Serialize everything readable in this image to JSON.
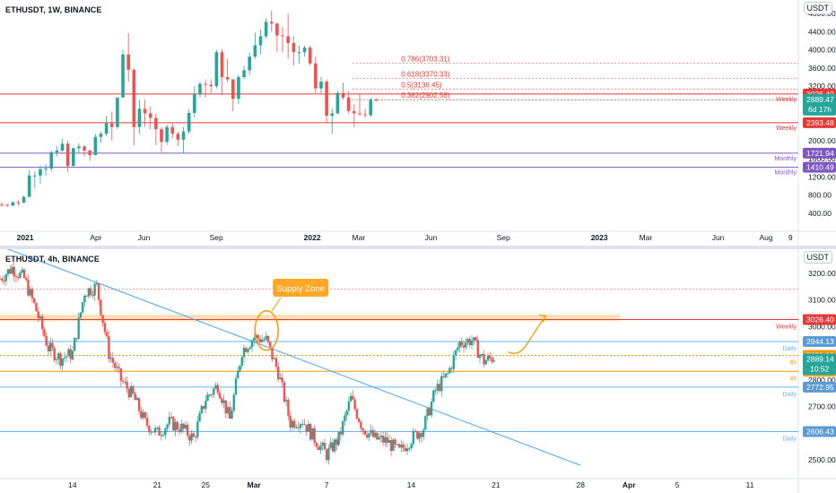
{
  "chart_data": [
    {
      "type": "candlestick",
      "title": "ETHUSDT, 1W, BINANCE",
      "currency": "USDT",
      "y_ticks": [
        400,
        800,
        1200,
        1600,
        2000,
        2400,
        2800,
        3200,
        3600,
        4000,
        4400,
        4800
      ],
      "y_tick_labels": [
        "400.00",
        "800.00",
        "1200.00",
        "1600.00",
        "2000.00",
        "2400.00",
        "2800.00",
        "3200.00",
        "3600.00",
        "4000.00",
        "4400.00",
        "4800.00"
      ],
      "y_range": [
        0,
        5100
      ],
      "x_range": [
        "2020-11-30",
        "2023-09-11"
      ],
      "x_ticks": [
        {
          "date": "2021-01-01",
          "label": "2021",
          "bold": true
        },
        {
          "date": "2021-04-01",
          "label": "Apr",
          "bold": false
        },
        {
          "date": "2021-06-01",
          "label": "Jun",
          "bold": false
        },
        {
          "date": "2021-09-01",
          "label": "Sep",
          "bold": false
        },
        {
          "date": "2022-01-01",
          "label": "2022",
          "bold": true
        },
        {
          "date": "2022-03-01",
          "label": "Mar",
          "bold": false
        },
        {
          "date": "2022-06-01",
          "label": "Jun",
          "bold": false
        },
        {
          "date": "2022-09-01",
          "label": "Sep",
          "bold": false
        },
        {
          "date": "2023-01-01",
          "label": "2023",
          "bold": true
        },
        {
          "date": "2023-03-01",
          "label": "Mar",
          "bold": false
        },
        {
          "date": "2023-06-01",
          "label": "Jun",
          "bold": false
        },
        {
          "date": "2023-08-01",
          "label": "Aug",
          "bold": false
        },
        {
          "date": "2023-09-01",
          "label": "9",
          "bold": false
        }
      ],
      "ohlc": [
        {
          "t": "2020-11-30",
          "o": 590,
          "h": 640,
          "l": 540,
          "c": 585
        },
        {
          "t": "2020-12-07",
          "o": 585,
          "h": 600,
          "l": 530,
          "c": 565
        },
        {
          "t": "2020-12-14",
          "o": 565,
          "h": 660,
          "l": 560,
          "c": 640
        },
        {
          "t": "2020-12-21",
          "o": 640,
          "h": 690,
          "l": 560,
          "c": 630
        },
        {
          "t": "2020-12-28",
          "o": 630,
          "h": 780,
          "l": 620,
          "c": 760
        },
        {
          "t": "2021-01-04",
          "o": 760,
          "h": 1350,
          "l": 750,
          "c": 1230
        },
        {
          "t": "2021-01-11",
          "o": 1230,
          "h": 1320,
          "l": 950,
          "c": 1230
        },
        {
          "t": "2021-01-18",
          "o": 1230,
          "h": 1450,
          "l": 1050,
          "c": 1370
        },
        {
          "t": "2021-01-25",
          "o": 1370,
          "h": 1480,
          "l": 1230,
          "c": 1380
        },
        {
          "t": "2021-02-01",
          "o": 1380,
          "h": 1780,
          "l": 1320,
          "c": 1740
        },
        {
          "t": "2021-02-08",
          "o": 1740,
          "h": 1880,
          "l": 1650,
          "c": 1780
        },
        {
          "t": "2021-02-15",
          "o": 1780,
          "h": 2040,
          "l": 1760,
          "c": 1930
        },
        {
          "t": "2021-02-22",
          "o": 1930,
          "h": 2000,
          "l": 1300,
          "c": 1440
        },
        {
          "t": "2021-03-01",
          "o": 1440,
          "h": 1850,
          "l": 1430,
          "c": 1830
        },
        {
          "t": "2021-03-08",
          "o": 1830,
          "h": 1940,
          "l": 1720,
          "c": 1870
        },
        {
          "t": "2021-03-15",
          "o": 1870,
          "h": 1900,
          "l": 1650,
          "c": 1780
        },
        {
          "t": "2021-03-22",
          "o": 1780,
          "h": 1800,
          "l": 1550,
          "c": 1680
        },
        {
          "t": "2021-03-29",
          "o": 1680,
          "h": 2150,
          "l": 1670,
          "c": 2080
        },
        {
          "t": "2021-04-05",
          "o": 2080,
          "h": 2200,
          "l": 1950,
          "c": 2150
        },
        {
          "t": "2021-04-12",
          "o": 2150,
          "h": 2550,
          "l": 2100,
          "c": 2380
        },
        {
          "t": "2021-04-19",
          "o": 2380,
          "h": 2640,
          "l": 2000,
          "c": 2300
        },
        {
          "t": "2021-04-26",
          "o": 2300,
          "h": 2950,
          "l": 2250,
          "c": 2950
        },
        {
          "t": "2021-05-03",
          "o": 2950,
          "h": 4000,
          "l": 2950,
          "c": 3900
        },
        {
          "t": "2021-05-10",
          "o": 3900,
          "h": 4370,
          "l": 3300,
          "c": 3560
        },
        {
          "t": "2021-05-17",
          "o": 3560,
          "h": 3600,
          "l": 1900,
          "c": 2300
        },
        {
          "t": "2021-05-24",
          "o": 2300,
          "h": 2900,
          "l": 2150,
          "c": 2700
        },
        {
          "t": "2021-05-31",
          "o": 2700,
          "h": 2900,
          "l": 2300,
          "c": 2600
        },
        {
          "t": "2021-06-07",
          "o": 2600,
          "h": 2750,
          "l": 2250,
          "c": 2500
        },
        {
          "t": "2021-06-14",
          "o": 2500,
          "h": 2600,
          "l": 1900,
          "c": 2250
        },
        {
          "t": "2021-06-21",
          "o": 2250,
          "h": 2300,
          "l": 1750,
          "c": 1970
        },
        {
          "t": "2021-06-28",
          "o": 1970,
          "h": 2350,
          "l": 1900,
          "c": 2300
        },
        {
          "t": "2021-07-05",
          "o": 2300,
          "h": 2400,
          "l": 2050,
          "c": 2150
        },
        {
          "t": "2021-07-12",
          "o": 2150,
          "h": 2200,
          "l": 1880,
          "c": 2020
        },
        {
          "t": "2021-07-19",
          "o": 2020,
          "h": 2300,
          "l": 1720,
          "c": 2200
        },
        {
          "t": "2021-07-26",
          "o": 2200,
          "h": 2700,
          "l": 2150,
          "c": 2610
        },
        {
          "t": "2021-08-02",
          "o": 2610,
          "h": 3200,
          "l": 2500,
          "c": 3020
        },
        {
          "t": "2021-08-09",
          "o": 3020,
          "h": 3300,
          "l": 2950,
          "c": 3250
        },
        {
          "t": "2021-08-16",
          "o": 3250,
          "h": 3350,
          "l": 2950,
          "c": 3230
        },
        {
          "t": "2021-08-23",
          "o": 3230,
          "h": 3350,
          "l": 3050,
          "c": 3200
        },
        {
          "t": "2021-08-30",
          "o": 3200,
          "h": 4000,
          "l": 3150,
          "c": 3950
        },
        {
          "t": "2021-09-06",
          "o": 3950,
          "h": 4020,
          "l": 3000,
          "c": 3400
        },
        {
          "t": "2021-09-13",
          "o": 3400,
          "h": 3800,
          "l": 3300,
          "c": 3350
        },
        {
          "t": "2021-09-20",
          "o": 3350,
          "h": 3350,
          "l": 2650,
          "c": 2920
        },
        {
          "t": "2021-09-27",
          "o": 2920,
          "h": 3450,
          "l": 2800,
          "c": 3400
        },
        {
          "t": "2021-10-04",
          "o": 3400,
          "h": 3650,
          "l": 3350,
          "c": 3550
        },
        {
          "t": "2021-10-11",
          "o": 3550,
          "h": 3950,
          "l": 3450,
          "c": 3850
        },
        {
          "t": "2021-10-18",
          "o": 3850,
          "h": 4380,
          "l": 3800,
          "c": 4100
        },
        {
          "t": "2021-10-25",
          "o": 4100,
          "h": 4450,
          "l": 3900,
          "c": 4300
        },
        {
          "t": "2021-11-01",
          "o": 4300,
          "h": 4700,
          "l": 4250,
          "c": 4620
        },
        {
          "t": "2021-11-08",
          "o": 4620,
          "h": 4870,
          "l": 4400,
          "c": 4580
        },
        {
          "t": "2021-11-15",
          "o": 4580,
          "h": 4600,
          "l": 3950,
          "c": 4320
        },
        {
          "t": "2021-11-22",
          "o": 4320,
          "h": 4500,
          "l": 3950,
          "c": 4300
        },
        {
          "t": "2021-11-29",
          "o": 4300,
          "h": 4800,
          "l": 3800,
          "c": 4150
        },
        {
          "t": "2021-12-06",
          "o": 4150,
          "h": 4300,
          "l": 3650,
          "c": 3950
        },
        {
          "t": "2021-12-13",
          "o": 3950,
          "h": 4100,
          "l": 3700,
          "c": 3950
        },
        {
          "t": "2021-12-20",
          "o": 3950,
          "h": 4100,
          "l": 3850,
          "c": 4050
        },
        {
          "t": "2021-12-27",
          "o": 4050,
          "h": 4100,
          "l": 3650,
          "c": 3700
        },
        {
          "t": "2022-01-03",
          "o": 3700,
          "h": 3850,
          "l": 3050,
          "c": 3150
        },
        {
          "t": "2022-01-10",
          "o": 3150,
          "h": 3400,
          "l": 3050,
          "c": 3300
        },
        {
          "t": "2022-01-17",
          "o": 3300,
          "h": 3350,
          "l": 2400,
          "c": 2550
        },
        {
          "t": "2022-01-24",
          "o": 2550,
          "h": 2700,
          "l": 2150,
          "c": 2600
        },
        {
          "t": "2022-01-31",
          "o": 2600,
          "h": 3100,
          "l": 2580,
          "c": 3050
        },
        {
          "t": "2022-02-07",
          "o": 3050,
          "h": 3280,
          "l": 2900,
          "c": 2950
        },
        {
          "t": "2022-02-14",
          "o": 2950,
          "h": 3100,
          "l": 2600,
          "c": 2650
        },
        {
          "t": "2022-02-21",
          "o": 2650,
          "h": 2800,
          "l": 2300,
          "c": 2600
        },
        {
          "t": "2022-02-28",
          "o": 2600,
          "h": 3050,
          "l": 2550,
          "c": 2580
        },
        {
          "t": "2022-03-07",
          "o": 2580,
          "h": 2700,
          "l": 2500,
          "c": 2560
        },
        {
          "t": "2022-03-14",
          "o": 2560,
          "h": 2950,
          "l": 2520,
          "c": 2900
        },
        {
          "t": "2022-03-21",
          "o": 2900,
          "h": 2920,
          "l": 2860,
          "c": 2889
        }
      ],
      "levels": [
        {
          "name": "fib-786",
          "label": "0.786(3703.31)",
          "value": 3703.31,
          "color": "#e57373",
          "style": "dotted",
          "side_label": "",
          "badge": ""
        },
        {
          "name": "fib-618",
          "label": "0.618(3370.33)",
          "value": 3370.33,
          "color": "#e57373",
          "style": "dotted",
          "side_label": "",
          "badge": ""
        },
        {
          "name": "fib-5",
          "label": "0.5(3136.45)",
          "value": 3136.45,
          "color": "#e57373",
          "style": "dotted",
          "side_label": "",
          "badge": ""
        },
        {
          "name": "fib-382",
          "label": "0.382(2902.58)",
          "value": 2902.58,
          "color": "#e57373",
          "style": "dotted",
          "side_label": "",
          "badge": ""
        },
        {
          "name": "weekly-resistance",
          "label": "",
          "value": 3026.4,
          "color": "#e53935",
          "style": "solid",
          "side_label": "Weekly",
          "badge": "3026.40"
        },
        {
          "name": "weekly-support",
          "label": "",
          "value": 2393.48,
          "color": "#e53935",
          "style": "solid",
          "side_label": "Weekly",
          "badge": "2393.48"
        },
        {
          "name": "monthly-1",
          "label": "",
          "value": 1721.94,
          "color": "#7e57c2",
          "style": "solid",
          "side_label": "Monthly",
          "badge": "1721.94"
        },
        {
          "name": "monthly-2",
          "label": "",
          "value": 1410.49,
          "color": "#7e57c2",
          "style": "solid",
          "side_label": "Monthly",
          "badge": "1410.49"
        }
      ],
      "last_price": {
        "value": "2889.47",
        "countdown": "6d 17h",
        "color": "#26a69a"
      },
      "grid": false
    },
    {
      "type": "candlestick",
      "title": "ETHUSDT, 4h, BINANCE",
      "currency": "USDT",
      "y_ticks": [
        2500,
        2600,
        2700,
        2800,
        2900,
        3000,
        3100,
        3200
      ],
      "y_tick_labels": [
        "2500.00",
        "2600.00",
        "2700.00",
        "2800.00",
        "2900.00",
        "3000.00",
        "3100.00",
        "3200.00"
      ],
      "y_range": [
        2430,
        3290
      ],
      "x_range": [
        "2022-02-08",
        "2022-04-15"
      ],
      "x_ticks": [
        {
          "date": "2022-02-14",
          "label": "14",
          "bold": false
        },
        {
          "date": "2022-02-21",
          "label": "21",
          "bold": false
        },
        {
          "date": "2022-02-25",
          "label": "25",
          "bold": false
        },
        {
          "date": "2022-03-01",
          "label": "Mar",
          "bold": true
        },
        {
          "date": "2022-03-07",
          "label": "7",
          "bold": false
        },
        {
          "date": "2022-03-14",
          "label": "14",
          "bold": false
        },
        {
          "date": "2022-03-21",
          "label": "21",
          "bold": false
        },
        {
          "date": "2022-03-28",
          "label": "28",
          "bold": false
        },
        {
          "date": "2022-04-01",
          "label": "Apr",
          "bold": true
        },
        {
          "date": "2022-04-05",
          "label": "5",
          "bold": false
        },
        {
          "date": "2022-04-11",
          "label": "11",
          "bold": false
        }
      ],
      "close_path": [
        [
          "2022-02-08",
          3180
        ],
        [
          "2022-02-09",
          3220
        ],
        [
          "2022-02-10",
          3180
        ],
        [
          "2022-02-11",
          3060
        ],
        [
          "2022-02-12",
          2920
        ],
        [
          "2022-02-13",
          2880
        ],
        [
          "2022-02-14",
          2900
        ],
        [
          "2022-02-15",
          3130
        ],
        [
          "2022-02-16",
          3150
        ],
        [
          "2022-02-17",
          2900
        ],
        [
          "2022-02-18",
          2800
        ],
        [
          "2022-02-19",
          2740
        ],
        [
          "2022-02-20",
          2640
        ],
        [
          "2022-02-21",
          2600
        ],
        [
          "2022-02-22",
          2640
        ],
        [
          "2022-02-23",
          2620
        ],
        [
          "2022-02-24",
          2580
        ],
        [
          "2022-02-25",
          2730
        ],
        [
          "2022-02-26",
          2780
        ],
        [
          "2022-02-27",
          2650
        ],
        [
          "2022-02-28",
          2910
        ],
        [
          "2022-03-01",
          2960
        ],
        [
          "2022-03-02",
          2950
        ],
        [
          "2022-03-03",
          2830
        ],
        [
          "2022-03-04",
          2640
        ],
        [
          "2022-03-05",
          2650
        ],
        [
          "2022-03-06",
          2580
        ],
        [
          "2022-03-07",
          2520
        ],
        [
          "2022-03-08",
          2580
        ],
        [
          "2022-03-09",
          2730
        ],
        [
          "2022-03-10",
          2620
        ],
        [
          "2022-03-11",
          2580
        ],
        [
          "2022-03-12",
          2570
        ],
        [
          "2022-03-13",
          2530
        ],
        [
          "2022-03-14",
          2580
        ],
        [
          "2022-03-15",
          2620
        ],
        [
          "2022-03-16",
          2760
        ],
        [
          "2022-03-17",
          2820
        ],
        [
          "2022-03-18",
          2940
        ],
        [
          "2022-03-19",
          2950
        ],
        [
          "2022-03-20",
          2870
        ],
        [
          "2022-03-21",
          2889
        ]
      ],
      "levels": [
        {
          "name": "upper-red-dotted",
          "label": "",
          "value": 3140,
          "color": "#ef9a9a",
          "style": "dotted",
          "side_label": "",
          "badge": ""
        },
        {
          "name": "weekly-resistance-4h",
          "label": "",
          "value": 3026.4,
          "color": "#e53935",
          "style": "solid",
          "side_label": "Weekly",
          "badge": "3026.40",
          "badge_color": "#e53935"
        },
        {
          "name": "daily-2944",
          "label": "",
          "value": 2944.13,
          "color": "#64b5f6",
          "style": "solid",
          "side_label": "Daily",
          "badge": "2944.13",
          "badge_color": "#5b9bd5"
        },
        {
          "name": "4h-2891",
          "label": "",
          "value": 2891.98,
          "color": "#ff9800",
          "style": "dotted",
          "side_label": "4h",
          "badge": "2891.98",
          "badge_color": "#ff9800"
        },
        {
          "name": "4h-2832",
          "label": "",
          "value": 2832.13,
          "color": "#ff9800",
          "style": "solid",
          "side_label": "4h",
          "badge": "2832.13",
          "badge_color": "#ffa726"
        },
        {
          "name": "daily-2772",
          "label": "",
          "value": 2772.95,
          "color": "#64b5f6",
          "style": "solid",
          "side_label": "Daily",
          "badge": "2772.95",
          "badge_color": "#5b9bd5"
        },
        {
          "name": "daily-2606",
          "label": "",
          "value": 2606.43,
          "color": "#64b5f6",
          "style": "solid",
          "side_label": "Daily",
          "badge": "2606.43",
          "badge_color": "#5b9bd5"
        }
      ],
      "supply_zone": {
        "label": "Supply Zone",
        "from": 3020,
        "to": 3045
      },
      "trendline": {
        "from": [
          "2022-02-08",
          3275
        ],
        "to": [
          "2022-03-28",
          2480
        ]
      },
      "last_price": {
        "value": "2889.14",
        "countdown": "10:52",
        "color": "#26a69a"
      },
      "grid": false
    }
  ]
}
